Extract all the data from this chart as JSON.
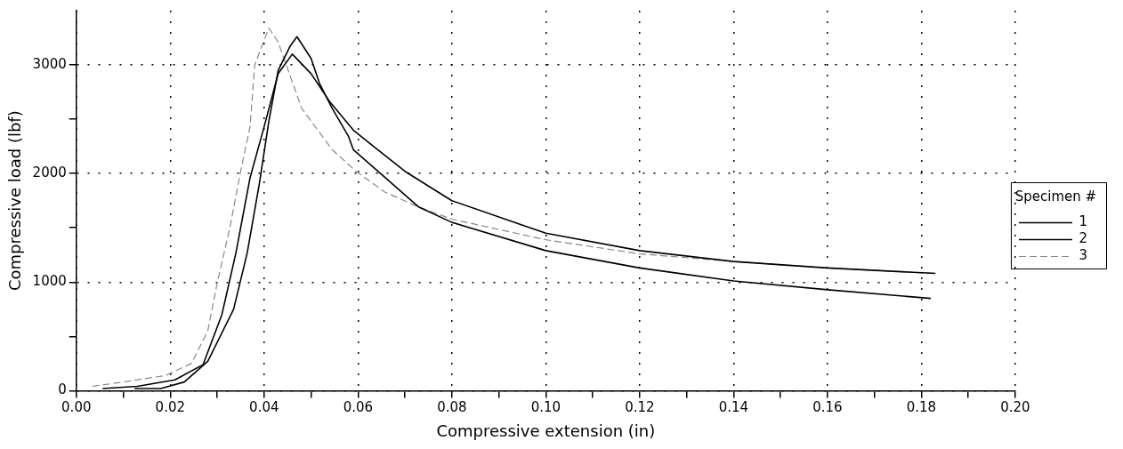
{
  "chart_data": {
    "type": "line",
    "xlabel": "Compressive extension (in)",
    "ylabel": "Compressive load (lbf)",
    "legend_title": "Specimen #",
    "legend": "right",
    "grid": true,
    "marker": "none",
    "xlim": [
      0,
      0.2
    ],
    "xticks": [
      {
        "value": 0,
        "label": "0.00"
      },
      {
        "value": 0.01,
        "label": null
      },
      {
        "value": 0.02,
        "label": "0.02"
      },
      {
        "value": 0.03,
        "label": null
      },
      {
        "value": 0.04,
        "label": "0.04"
      },
      {
        "value": 0.05,
        "label": null
      },
      {
        "value": 0.06,
        "label": "0.06"
      },
      {
        "value": 0.07,
        "label": null
      },
      {
        "value": 0.08,
        "label": "0.08"
      },
      {
        "value": 0.09,
        "label": null
      },
      {
        "value": 0.1,
        "label": "0.10"
      },
      {
        "value": 0.11,
        "label": null
      },
      {
        "value": 0.12,
        "label": "0.12"
      },
      {
        "value": 0.13,
        "label": null
      },
      {
        "value": 0.14,
        "label": "0.14"
      },
      {
        "value": 0.15,
        "label": null
      },
      {
        "value": 0.16,
        "label": "0.16"
      },
      {
        "value": 0.17,
        "label": null
      },
      {
        "value": 0.18,
        "label": "0.18"
      },
      {
        "value": 0.19,
        "label": null
      },
      {
        "value": 0.2,
        "label": "0.20"
      }
    ],
    "ylim": [
      0,
      3500
    ],
    "yticks": [
      0,
      {
        "value": 500,
        "label": null
      },
      1000,
      {
        "value": 1500,
        "label": null
      },
      2000,
      {
        "value": 2500,
        "label": null
      },
      3000
    ],
    "series": [
      {
        "name": "1",
        "color": "#000000",
        "line_style": "solid",
        "x": [
          0.0056,
          0.013,
          0.021,
          0.027,
          0.031,
          0.034,
          0.037,
          0.04,
          0.043,
          0.046,
          0.05,
          0.054,
          0.059,
          0.063,
          0.07,
          0.08,
          0.1,
          0.12,
          0.14,
          0.16,
          0.183
        ],
        "values": [
          20,
          40,
          100,
          240,
          700,
          1270,
          1960,
          2430,
          2920,
          3100,
          2920,
          2660,
          2400,
          2260,
          2020,
          1750,
          1450,
          1290,
          1190,
          1130,
          1080
        ]
      },
      {
        "name": "2",
        "color": "#000000",
        "line_style": "solid",
        "x": [
          0.0124,
          0.018,
          0.023,
          0.028,
          0.0335,
          0.0364,
          0.039,
          0.041,
          0.043,
          0.0455,
          0.047,
          0.05,
          0.0518,
          0.0545,
          0.058,
          0.059,
          0.073,
          0.08,
          0.1,
          0.12,
          0.14,
          0.16,
          0.182
        ],
        "values": [
          20,
          20,
          80,
          270,
          750,
          1270,
          1910,
          2480,
          2950,
          3170,
          3260,
          3060,
          2830,
          2600,
          2340,
          2220,
          1690,
          1550,
          1290,
          1130,
          1010,
          930,
          850
        ]
      },
      {
        "name": "3",
        "color": "#888888",
        "line_style": "dashed",
        "x": [
          0.0034,
          0.01,
          0.019,
          0.0245,
          0.028,
          0.03,
          0.0327,
          0.035,
          0.037,
          0.038,
          0.041,
          0.043,
          0.048,
          0.0545,
          0.0596,
          0.0657,
          0.073,
          0.08,
          0.1,
          0.12,
          0.14,
          0.16,
          0.183
        ],
        "values": [
          40,
          80,
          140,
          250,
          550,
          990,
          1500,
          2020,
          2430,
          3000,
          3340,
          3210,
          2600,
          2220,
          2020,
          1830,
          1690,
          1580,
          1390,
          1260,
          1190,
          1130,
          1080
        ]
      }
    ]
  }
}
